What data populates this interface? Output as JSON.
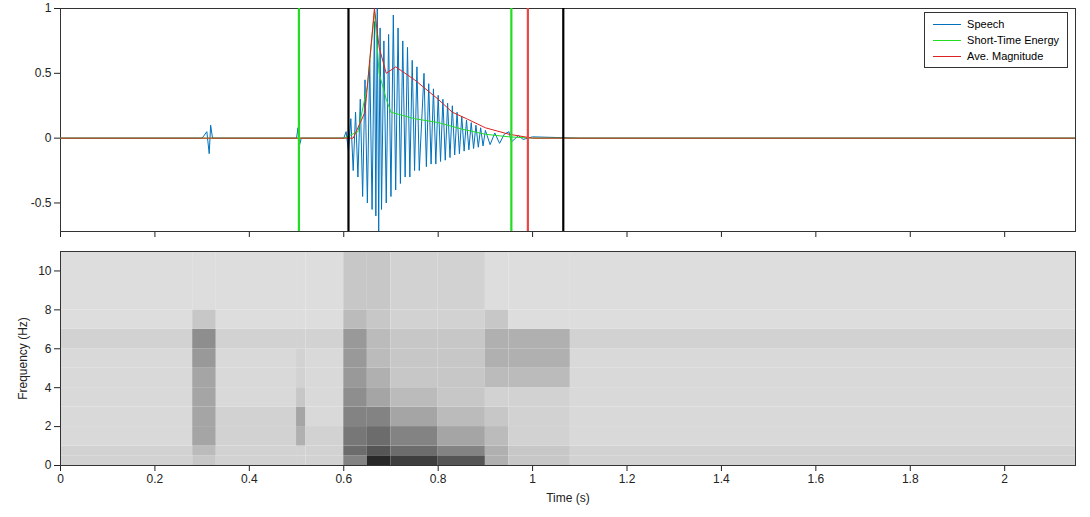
{
  "chart_data": [
    {
      "type": "line",
      "legend": "northeast",
      "tick_labels": "y",
      "xlim": [
        0,
        2.15
      ],
      "xticks": [
        0,
        0.2,
        0.4,
        0.6,
        0.8,
        1,
        1.2,
        1.4,
        1.6,
        1.8,
        2
      ],
      "ylim": [
        -0.72,
        1
      ],
      "yticks": [
        -0.5,
        0,
        0.5,
        1
      ],
      "series": [
        {
          "name": "Speech",
          "color": "#0072bd",
          "x": [
            0,
            0.3,
            0.31,
            0.315,
            0.318,
            0.322,
            0.5,
            0.503,
            0.506,
            0.51,
            0.6,
            0.605,
            0.61,
            0.615,
            0.62,
            0.625,
            0.63,
            0.635,
            0.64,
            0.645,
            0.65,
            0.655,
            0.66,
            0.665,
            0.668,
            0.671,
            0.674,
            0.677,
            0.68,
            0.685,
            0.69,
            0.695,
            0.7,
            0.705,
            0.71,
            0.715,
            0.72,
            0.725,
            0.73,
            0.735,
            0.74,
            0.745,
            0.75,
            0.755,
            0.76,
            0.77,
            0.775,
            0.78,
            0.785,
            0.79,
            0.795,
            0.8,
            0.805,
            0.81,
            0.815,
            0.82,
            0.825,
            0.83,
            0.835,
            0.84,
            0.845,
            0.85,
            0.855,
            0.86,
            0.865,
            0.87,
            0.875,
            0.88,
            0.885,
            0.89,
            0.895,
            0.9,
            0.91,
            0.92,
            0.93,
            0.94,
            0.95,
            0.955,
            0.97,
            0.98,
            1.0,
            1.1,
            2.15
          ],
          "values": [
            0,
            0,
            0.05,
            -0.12,
            0.1,
            0,
            0,
            0.08,
            -0.06,
            0,
            0,
            0.05,
            -0.1,
            0.15,
            -0.25,
            0.2,
            -0.3,
            0.3,
            -0.45,
            0.45,
            -0.5,
            0.6,
            -0.55,
            0.9,
            -0.6,
            1.0,
            -0.72,
            0.85,
            -0.55,
            0.75,
            -0.5,
            0.8,
            -0.45,
            0.95,
            -0.4,
            0.85,
            -0.35,
            0.75,
            -0.3,
            0.7,
            -0.3,
            0.6,
            -0.25,
            0.55,
            -0.25,
            0.5,
            -0.22,
            0.42,
            -0.2,
            0.38,
            -0.2,
            0.33,
            -0.18,
            0.3,
            -0.17,
            0.27,
            -0.15,
            0.25,
            -0.13,
            0.2,
            -0.12,
            0.17,
            -0.1,
            0.14,
            -0.09,
            0.12,
            -0.08,
            0.1,
            -0.07,
            0.08,
            -0.06,
            0.06,
            -0.05,
            0.04,
            -0.04,
            0.03,
            0.05,
            -0.03,
            0.02,
            -0.01,
            0.01,
            0,
            0
          ]
        },
        {
          "name": "Short-Time Energy",
          "color": "#22dd22",
          "x": [
            0,
            0.6,
            0.63,
            0.65,
            0.665,
            0.675,
            0.69,
            0.7,
            0.75,
            0.8,
            0.85,
            0.9,
            0.95,
            1.0,
            2.15
          ],
          "values": [
            0,
            0,
            0.05,
            0.4,
            0.98,
            0.5,
            0.3,
            0.2,
            0.15,
            0.12,
            0.07,
            0.03,
            0.01,
            0,
            0
          ]
        },
        {
          "name": "Ave. Magnitude",
          "color": "#dd2222",
          "x": [
            0,
            0.62,
            0.645,
            0.665,
            0.675,
            0.69,
            0.71,
            0.75,
            0.8,
            0.83,
            0.86,
            0.9,
            0.95,
            1.0,
            2.15
          ],
          "values": [
            0,
            0,
            0.2,
            1.0,
            0.7,
            0.5,
            0.55,
            0.45,
            0.3,
            0.2,
            0.15,
            0.08,
            0.03,
            0,
            0
          ]
        }
      ],
      "vlines": [
        {
          "x": 0.505,
          "color": "#22dd22",
          "line_style": "dashed"
        },
        {
          "x": 0.61,
          "color": "#000000",
          "line_style": "dashed"
        },
        {
          "x": 0.955,
          "color": "#22dd22",
          "line_style": "dashed"
        },
        {
          "x": 0.99,
          "color": "#ee4444",
          "line_style": "dashed"
        },
        {
          "x": 1.065,
          "color": "#000000",
          "line_style": "dashed"
        }
      ]
    },
    {
      "type": "heatmap",
      "x_label": "Time (s)",
      "y_label": "Frequency (Hz)",
      "xlim": [
        0,
        2.15
      ],
      "xticks": [
        0,
        0.2,
        0.4,
        0.6,
        0.8,
        1,
        1.2,
        1.4,
        1.6,
        1.8,
        2
      ],
      "ylim": [
        0,
        11
      ],
      "yticks": [
        0,
        2,
        4,
        6,
        8,
        10
      ],
      "zlim": [
        0,
        1
      ],
      "x_edges": [
        0,
        0.28,
        0.33,
        0.5,
        0.52,
        0.6,
        0.65,
        0.7,
        0.8,
        0.9,
        0.95,
        1.08,
        2.15
      ],
      "y_edges": [
        0,
        0.5,
        1,
        2,
        3,
        4,
        5,
        6,
        7,
        8,
        11
      ],
      "cells": [
        [
          0.15,
          0.2,
          0.15,
          0.15,
          0.15,
          0.5,
          0.9,
          0.8,
          0.7,
          0.3,
          0.2,
          0.15
        ],
        [
          0.15,
          0.25,
          0.15,
          0.15,
          0.15,
          0.6,
          0.7,
          0.6,
          0.5,
          0.3,
          0.2,
          0.15
        ],
        [
          0.12,
          0.35,
          0.15,
          0.3,
          0.15,
          0.55,
          0.6,
          0.5,
          0.35,
          0.25,
          0.15,
          0.12
        ],
        [
          0.12,
          0.35,
          0.15,
          0.35,
          0.12,
          0.5,
          0.5,
          0.35,
          0.25,
          0.2,
          0.15,
          0.12
        ],
        [
          0.12,
          0.35,
          0.12,
          0.2,
          0.12,
          0.45,
          0.35,
          0.25,
          0.2,
          0.15,
          0.15,
          0.12
        ],
        [
          0.12,
          0.35,
          0.12,
          0.15,
          0.12,
          0.4,
          0.3,
          0.2,
          0.2,
          0.25,
          0.25,
          0.12
        ],
        [
          0.12,
          0.4,
          0.12,
          0.15,
          0.12,
          0.4,
          0.25,
          0.2,
          0.2,
          0.3,
          0.3,
          0.12
        ],
        [
          0.15,
          0.45,
          0.15,
          0.15,
          0.15,
          0.4,
          0.25,
          0.2,
          0.2,
          0.3,
          0.3,
          0.15
        ],
        [
          0.1,
          0.2,
          0.1,
          0.1,
          0.1,
          0.25,
          0.2,
          0.15,
          0.15,
          0.2,
          0.1,
          0.1
        ],
        [
          0.1,
          0.1,
          0.1,
          0.1,
          0.1,
          0.2,
          0.2,
          0.15,
          0.15,
          0.1,
          0.1,
          0.1
        ]
      ]
    }
  ]
}
